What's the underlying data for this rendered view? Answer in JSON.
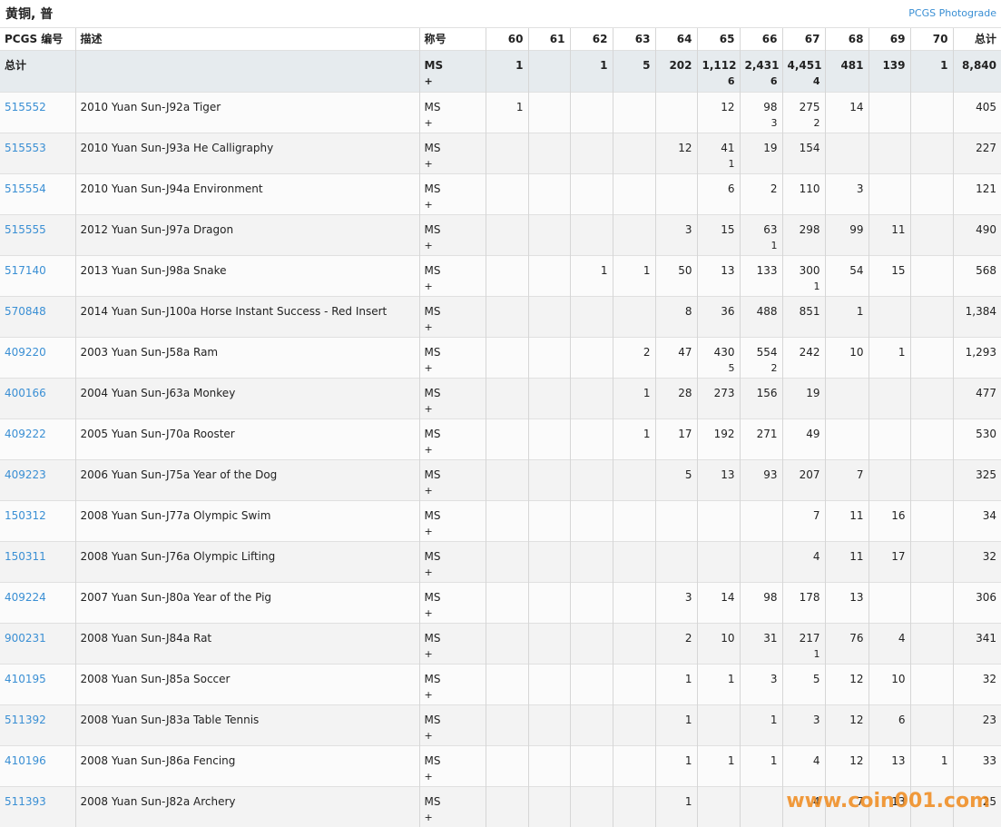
{
  "header": {
    "title": "黄铜, 普",
    "link": "PCGS Photograde"
  },
  "table": {
    "columns": [
      "PCGS 编号",
      "描述",
      "称号",
      "60",
      "61",
      "62",
      "63",
      "64",
      "65",
      "66",
      "67",
      "68",
      "69",
      "70",
      "总计"
    ],
    "total_row": {
      "label": "总计",
      "designation": [
        "MS",
        "+"
      ],
      "grades": [
        "1",
        null,
        "1",
        "5",
        "202",
        [
          "1,112",
          "6"
        ],
        [
          "2,431",
          "6"
        ],
        [
          "4,451",
          "4"
        ],
        "481",
        "139",
        "1"
      ],
      "total": "8,840"
    },
    "rows": [
      {
        "id": "515552",
        "description": "2010 Yuan Sun-J92a Tiger",
        "designation": [
          "MS",
          "+"
        ],
        "grades": [
          "1",
          null,
          null,
          null,
          null,
          "12",
          [
            "98",
            "3"
          ],
          [
            "275",
            "2"
          ],
          "14",
          null,
          null
        ],
        "total": "405"
      },
      {
        "id": "515553",
        "description": "2010 Yuan Sun-J93a He Calligraphy",
        "designation": [
          "MS",
          "+"
        ],
        "grades": [
          null,
          null,
          null,
          null,
          "12",
          [
            "41",
            "1"
          ],
          "19",
          "154",
          null,
          null,
          null
        ],
        "total": "227"
      },
      {
        "id": "515554",
        "description": "2010 Yuan Sun-J94a Environment",
        "designation": [
          "MS",
          "+"
        ],
        "grades": [
          null,
          null,
          null,
          null,
          null,
          "6",
          "2",
          "110",
          "3",
          null,
          null
        ],
        "total": "121"
      },
      {
        "id": "515555",
        "description": "2012 Yuan Sun-J97a Dragon",
        "designation": [
          "MS",
          "+"
        ],
        "grades": [
          null,
          null,
          null,
          null,
          "3",
          "15",
          [
            "63",
            "1"
          ],
          "298",
          "99",
          "11",
          null
        ],
        "total": "490"
      },
      {
        "id": "517140",
        "description": "2013 Yuan Sun-J98a Snake",
        "designation": [
          "MS",
          "+"
        ],
        "grades": [
          null,
          null,
          "1",
          "1",
          "50",
          "13",
          "133",
          [
            "300",
            "1"
          ],
          "54",
          "15",
          null
        ],
        "total": "568"
      },
      {
        "id": "570848",
        "description": "2014 Yuan Sun-J100a Horse Instant Success - Red Insert",
        "designation": [
          "MS",
          "+"
        ],
        "grades": [
          null,
          null,
          null,
          null,
          "8",
          "36",
          "488",
          "851",
          "1",
          null,
          null
        ],
        "total": "1,384"
      },
      {
        "id": "409220",
        "description": "2003 Yuan Sun-J58a Ram",
        "designation": [
          "MS",
          "+"
        ],
        "grades": [
          null,
          null,
          null,
          "2",
          "47",
          [
            "430",
            "5"
          ],
          [
            "554",
            "2"
          ],
          "242",
          "10",
          "1",
          null
        ],
        "total": "1,293"
      },
      {
        "id": "400166",
        "description": "2004 Yuan Sun-J63a Monkey",
        "designation": [
          "MS",
          "+"
        ],
        "grades": [
          null,
          null,
          null,
          "1",
          "28",
          "273",
          "156",
          "19",
          null,
          null,
          null
        ],
        "total": "477"
      },
      {
        "id": "409222",
        "description": "2005 Yuan Sun-J70a Rooster",
        "designation": [
          "MS",
          "+"
        ],
        "grades": [
          null,
          null,
          null,
          "1",
          "17",
          "192",
          "271",
          "49",
          null,
          null,
          null
        ],
        "total": "530"
      },
      {
        "id": "409223",
        "description": "2006 Yuan Sun-J75a Year of the Dog",
        "designation": [
          "MS",
          "+"
        ],
        "grades": [
          null,
          null,
          null,
          null,
          "5",
          "13",
          "93",
          "207",
          "7",
          null,
          null
        ],
        "total": "325"
      },
      {
        "id": "150312",
        "description": "2008 Yuan Sun-J77a Olympic Swim",
        "designation": [
          "MS",
          "+"
        ],
        "grades": [
          null,
          null,
          null,
          null,
          null,
          null,
          null,
          "7",
          "11",
          "16",
          null
        ],
        "total": "34"
      },
      {
        "id": "150311",
        "description": "2008 Yuan Sun-J76a Olympic Lifting",
        "designation": [
          "MS",
          "+"
        ],
        "grades": [
          null,
          null,
          null,
          null,
          null,
          null,
          null,
          "4",
          "11",
          "17",
          null
        ],
        "total": "32"
      },
      {
        "id": "409224",
        "description": "2007 Yuan Sun-J80a Year of the Pig",
        "designation": [
          "MS",
          "+"
        ],
        "grades": [
          null,
          null,
          null,
          null,
          "3",
          "14",
          "98",
          "178",
          "13",
          null,
          null
        ],
        "total": "306"
      },
      {
        "id": "900231",
        "description": "2008 Yuan Sun-J84a Rat",
        "designation": [
          "MS",
          "+"
        ],
        "grades": [
          null,
          null,
          null,
          null,
          "2",
          "10",
          "31",
          [
            "217",
            "1"
          ],
          "76",
          "4",
          null
        ],
        "total": "341"
      },
      {
        "id": "410195",
        "description": "2008 Yuan Sun-J85a Soccer",
        "designation": [
          "MS",
          "+"
        ],
        "grades": [
          null,
          null,
          null,
          null,
          "1",
          "1",
          "3",
          "5",
          "12",
          "10",
          null
        ],
        "total": "32"
      },
      {
        "id": "511392",
        "description": "2008 Yuan Sun-J83a Table Tennis",
        "designation": [
          "MS",
          "+"
        ],
        "grades": [
          null,
          null,
          null,
          null,
          "1",
          null,
          "1",
          "3",
          "12",
          "6",
          null
        ],
        "total": "23"
      },
      {
        "id": "410196",
        "description": "2008 Yuan Sun-J86a Fencing",
        "designation": [
          "MS",
          "+"
        ],
        "grades": [
          null,
          null,
          null,
          null,
          "1",
          "1",
          "1",
          "4",
          "12",
          "13",
          "1"
        ],
        "total": "33"
      },
      {
        "id": "511393",
        "description": "2008 Yuan Sun-J82a Archery",
        "designation": [
          "MS",
          "+"
        ],
        "grades": [
          null,
          null,
          null,
          null,
          "1",
          null,
          null,
          "4",
          "7",
          "13",
          null
        ],
        "total": "25"
      }
    ]
  },
  "watermark": "www.coin001.com"
}
